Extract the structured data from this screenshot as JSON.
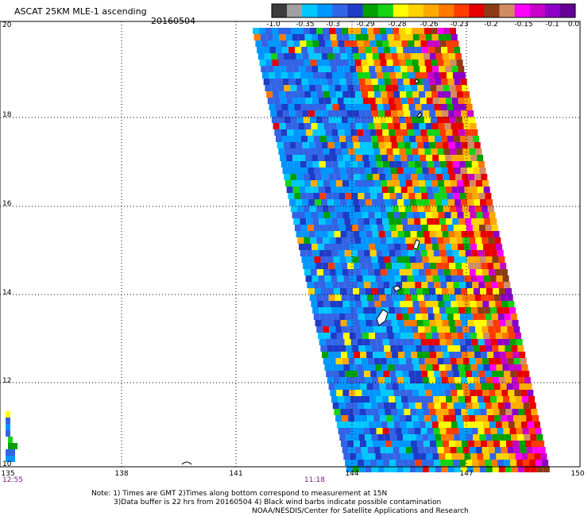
{
  "title": "ASCAT 25KM MLE-1 ascending",
  "date": "20160504",
  "colorbar": {
    "labels": [
      "-1.0",
      "-0.35",
      "-0.3",
      "-0.29",
      "-0.28",
      "-0.26",
      "-0.23",
      "-0.2",
      "-0.15",
      "-0.1",
      "0.0"
    ],
    "colors": [
      "#3c3c3c",
      "#a0a0a0",
      "#00c8ff",
      "#0096ff",
      "#3264e6",
      "#1e3cc8",
      "#00a000",
      "#14d214",
      "#ffff00",
      "#ffd200",
      "#ffaa00",
      "#ff7800",
      "#ff3c00",
      "#e60000",
      "#8c3c14",
      "#d28c64",
      "#ff00ff",
      "#c800c8",
      "#8c00c8",
      "#640096"
    ]
  },
  "axes": {
    "lat_labels": [
      "20",
      "18",
      "16",
      "14",
      "12",
      "10"
    ],
    "lon_labels": [
      "135",
      "138",
      "141",
      "144",
      "147",
      "150"
    ],
    "time_labels": [
      {
        "text": "12:55",
        "lon": 135
      },
      {
        "text": "11:18",
        "lon": 144
      }
    ]
  },
  "notes": {
    "line1": "Note: 1) Times are GMT 2)Times along bottom correspond to measurement at 15N",
    "line2": "3)Data buffer is 22 hrs from 20160504 4) Black wind barbs indicate possible contamination",
    "line3": "NOAA/NESDIS/Center for Satellite Applications and Research"
  }
}
